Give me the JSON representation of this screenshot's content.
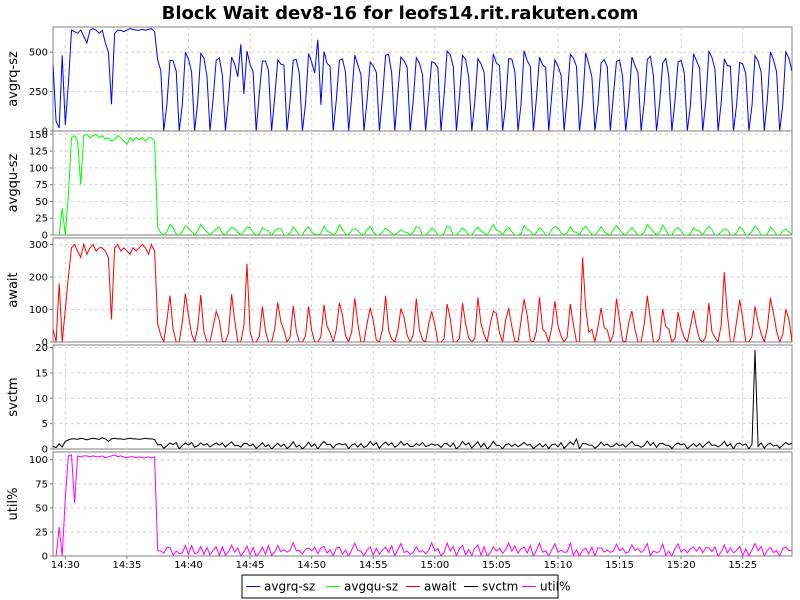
{
  "chart_data": {
    "type": "line",
    "title": "Block Wait dev8-16 for leofs14.rit.rakuten.com",
    "x_ticks": [
      "14:30",
      "14:35",
      "14:40",
      "14:45",
      "14:50",
      "14:55",
      "15:00",
      "15:05",
      "15:10",
      "15:15",
      "15:20",
      "15:25"
    ],
    "x_start": "14:29",
    "x_end": "15:29",
    "sample_interval_seconds": 15,
    "grid": true,
    "legend_position": "bottom",
    "panels": [
      {
        "name": "avgrq-sz",
        "ylabel": "avgrq-sz",
        "color": "#0000ff",
        "ylim": [
          0,
          660
        ],
        "yticks": [
          0,
          250,
          500
        ],
        "segments": [
          {
            "from": "14:29:00",
            "values": [
              420,
              60,
              20,
              480,
              40,
              300,
              640,
              630,
              620,
              640,
              600,
              560,
              640,
              650,
              640,
              620,
              640,
              560,
              500,
              170,
              620,
              640,
              640,
              630,
              640,
              650,
              645,
              640,
              640,
              645,
              640,
              645,
              650,
              630
            ]
          },
          {
            "from": "14:37:30",
            "pattern": [
              450,
              380,
              0,
              200,
              470
            ],
            "repeat_until": "15:29",
            "noise": 40
          }
        ],
        "spikes": [
          {
            "time": "14:44:15",
            "value": 550
          },
          {
            "time": "14:50:30",
            "value": 580
          },
          {
            "time": "14:57:00",
            "value": 250
          }
        ]
      },
      {
        "name": "avgqu-sz",
        "ylabel": "avgqu-sz",
        "color": "#00ff00",
        "ylim": [
          0,
          155
        ],
        "yticks": [
          0,
          25,
          50,
          75,
          100,
          125,
          150
        ],
        "segments": [
          {
            "from": "14:29:00",
            "values": [
              0,
              0,
              0,
              40,
              0,
              60,
              145,
              148,
              140,
              75,
              148,
              150,
              145,
              148,
              150,
              145,
              148,
              143,
              145,
              140,
              142,
              148,
              145,
              140,
              135,
              145,
              140,
              145,
              142,
              145,
              140,
              145,
              145,
              140
            ]
          },
          {
            "from": "14:37:30",
            "pattern": [
              8,
              2,
              0,
              5,
              12
            ],
            "repeat_until": "15:29",
            "noise": 4
          }
        ]
      },
      {
        "name": "await",
        "ylabel": "await",
        "color": "#ff0000",
        "ylim": [
          0,
          320
        ],
        "yticks": [
          0,
          100,
          200,
          300
        ],
        "segments": [
          {
            "from": "14:29:00",
            "values": [
              40,
              0,
              180,
              0,
              100,
              200,
              290,
              300,
              280,
              260,
              300,
              270,
              290,
              300,
              280,
              290,
              290,
              280,
              260,
              70,
              290,
              300,
              280,
              290,
              280,
              270,
              290,
              280,
              290,
              300,
              290,
              270,
              300,
              280
            ]
          },
          {
            "from": "14:37:30",
            "pattern": [
              60,
              10,
              0,
              40,
              120
            ],
            "repeat_until": "15:29",
            "noise": 30
          }
        ],
        "spikes": [
          {
            "time": "14:44:45",
            "value": 240
          },
          {
            "time": "15:12:00",
            "value": 260
          },
          {
            "time": "15:23:30",
            "value": 215
          }
        ]
      },
      {
        "name": "svctm",
        "ylabel": "svctm",
        "color": "#000000",
        "ylim": [
          0,
          20.5
        ],
        "yticks": [
          0,
          5,
          10,
          15,
          20
        ],
        "segments": [
          {
            "from": "14:29:00",
            "values": [
              0.5,
              0.3,
              1,
              0.4,
              1.5,
              1.8,
              2,
              2,
              1.9,
              2.1,
              2,
              1.8,
              2,
              2.1,
              2,
              1.9,
              2.2,
              2,
              1.5,
              2,
              2.1,
              2,
              2,
              1.9,
              2,
              2.1,
              2,
              2,
              1.9,
              2,
              2.1,
              2,
              2,
              1.9
            ]
          },
          {
            "from": "14:37:30",
            "pattern": [
              0.6,
              1.0,
              0.2,
              0.8,
              1.3
            ],
            "repeat_until": "15:29",
            "noise": 0.3
          }
        ],
        "spikes": [
          {
            "time": "15:26:00",
            "value": 19.5
          },
          {
            "time": "15:11:30",
            "value": 2
          }
        ]
      },
      {
        "name": "util%",
        "ylabel": "util%",
        "color": "#ff00ff",
        "ylim": [
          0,
          108
        ],
        "yticks": [
          0,
          25,
          50,
          75,
          100
        ],
        "segments": [
          {
            "from": "14:29:00",
            "values": [
              0,
              0,
              30,
              0,
              60,
              104,
              105,
              55,
              104,
              103,
              104,
              104,
              103,
              104,
              103,
              103,
              104,
              102,
              103,
              104,
              105,
              103,
              104,
              103,
              102,
              103,
              103,
              102,
              103,
              102,
              102,
              103,
              102,
              103
            ]
          },
          {
            "from": "14:37:30",
            "pattern": [
              3,
              8,
              1,
              6,
              11
            ],
            "repeat_until": "15:29",
            "noise": 3
          }
        ]
      }
    ],
    "legend": [
      {
        "label": "avgrq-sz",
        "color": "#0000ff"
      },
      {
        "label": "avgqu-sz",
        "color": "#00ff00"
      },
      {
        "label": "await",
        "color": "#ff0000"
      },
      {
        "label": "svctm",
        "color": "#000000"
      },
      {
        "label": "util%",
        "color": "#ff00ff"
      }
    ]
  }
}
